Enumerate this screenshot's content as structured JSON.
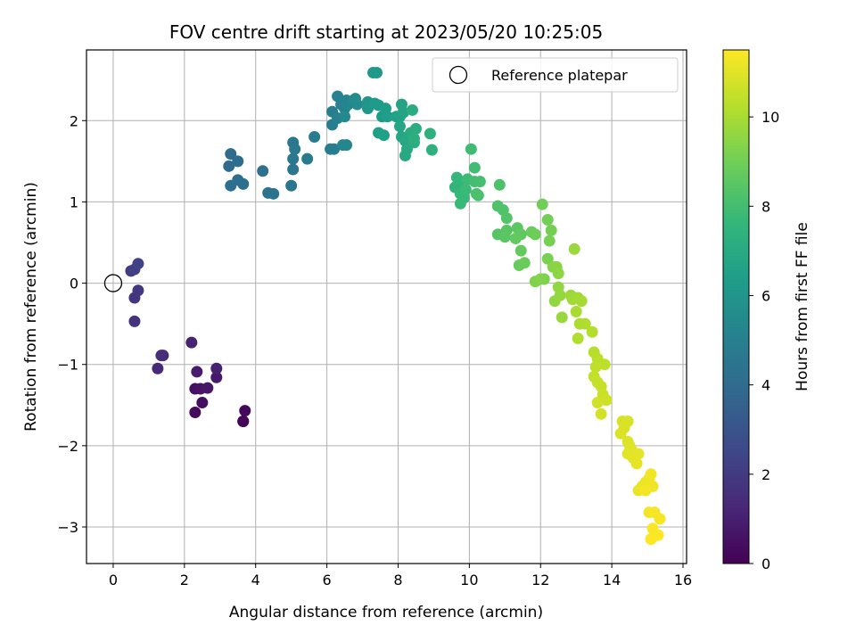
{
  "chart_data": {
    "type": "scatter",
    "title": "FOV centre drift starting at 2023/05/20 10:25:05",
    "xlabel": "Angular distance from reference (arcmin)",
    "ylabel": "Rotation from reference (arcmin)",
    "xlim": [
      -0.75,
      16.1
    ],
    "ylim": [
      -3.45,
      2.87
    ],
    "xticks": [
      0,
      2,
      4,
      6,
      8,
      10,
      12,
      14,
      16
    ],
    "yticks": [
      -3,
      -2,
      -1,
      0,
      1,
      2
    ],
    "grid": true,
    "legend": {
      "position": "upper-right",
      "entries": [
        "Reference platepar"
      ]
    },
    "reference_point": {
      "x": 0,
      "y": 0,
      "marker": "open-circle"
    },
    "colorbar": {
      "label": "Hours from first FF file",
      "colormap": "viridis",
      "min": 0,
      "max": 11.5,
      "ticks": [
        0,
        2,
        4,
        6,
        8,
        10
      ]
    },
    "colormap_stops": [
      "#440154",
      "#482878",
      "#3e4989",
      "#31688e",
      "#26828e",
      "#1f9e89",
      "#35b779",
      "#6ece58",
      "#b5de2b",
      "#fde725"
    ],
    "points": [
      [
        3.65,
        -1.7,
        0.0
      ],
      [
        3.65,
        -1.7,
        0.1
      ],
      [
        3.7,
        -1.57,
        0.2
      ],
      [
        2.3,
        -1.59,
        0.3
      ],
      [
        2.5,
        -1.47,
        0.4
      ],
      [
        2.3,
        -1.3,
        0.5
      ],
      [
        2.45,
        -1.3,
        0.6
      ],
      [
        2.65,
        -1.29,
        0.7
      ],
      [
        2.9,
        -1.16,
        0.8
      ],
      [
        2.35,
        -1.09,
        0.9
      ],
      [
        2.9,
        -1.05,
        1.0
      ],
      [
        2.2,
        -0.73,
        1.1
      ],
      [
        1.25,
        -1.05,
        1.3
      ],
      [
        1.4,
        -0.89,
        1.4
      ],
      [
        1.35,
        -0.89,
        1.5
      ],
      [
        0.6,
        -0.47,
        1.7
      ],
      [
        0.6,
        -0.18,
        1.8
      ],
      [
        0.7,
        -0.09,
        1.9
      ],
      [
        0.5,
        0.15,
        2.1
      ],
      [
        0.6,
        0.17,
        2.2
      ],
      [
        0.7,
        0.24,
        2.3
      ],
      [
        3.25,
        1.44,
        4.0
      ],
      [
        3.3,
        1.59,
        4.05
      ],
      [
        3.5,
        1.5,
        4.1
      ],
      [
        3.3,
        1.2,
        4.15
      ],
      [
        3.5,
        1.27,
        4.2
      ],
      [
        3.65,
        1.22,
        4.25
      ],
      [
        4.2,
        1.38,
        4.3
      ],
      [
        4.35,
        1.11,
        4.35
      ],
      [
        4.5,
        1.1,
        4.4
      ],
      [
        5.0,
        1.2,
        4.45
      ],
      [
        5.05,
        1.4,
        4.5
      ],
      [
        5.05,
        1.53,
        4.55
      ],
      [
        5.05,
        1.73,
        4.6
      ],
      [
        5.1,
        1.65,
        4.65
      ],
      [
        5.45,
        1.53,
        4.7
      ],
      [
        5.65,
        1.8,
        4.75
      ],
      [
        6.1,
        1.65,
        4.8
      ],
      [
        6.2,
        1.65,
        4.85
      ],
      [
        6.15,
        1.95,
        4.9
      ],
      [
        6.15,
        2.11,
        4.95
      ],
      [
        6.3,
        2.03,
        5.0
      ],
      [
        6.3,
        2.3,
        5.05
      ],
      [
        6.4,
        2.2,
        5.1
      ],
      [
        6.5,
        2.15,
        5.15
      ],
      [
        6.55,
        2.25,
        5.2
      ],
      [
        6.6,
        2.2,
        5.25
      ],
      [
        6.55,
        1.7,
        5.3
      ],
      [
        6.45,
        1.7,
        5.35
      ],
      [
        6.5,
        2.05,
        5.4
      ],
      [
        6.75,
        2.25,
        5.45
      ],
      [
        6.8,
        2.27,
        5.5
      ],
      [
        6.85,
        2.2,
        5.55
      ],
      [
        7.15,
        2.23,
        6.0
      ],
      [
        7.15,
        2.15,
        6.05
      ],
      [
        7.3,
        2.59,
        6.1
      ],
      [
        7.4,
        2.59,
        6.15
      ],
      [
        7.35,
        2.21,
        6.2
      ],
      [
        7.45,
        2.19,
        6.25
      ],
      [
        7.55,
        2.05,
        6.3
      ],
      [
        7.65,
        2.15,
        6.35
      ],
      [
        7.7,
        2.05,
        6.4
      ],
      [
        7.45,
        1.85,
        6.45
      ],
      [
        7.6,
        1.82,
        6.5
      ],
      [
        7.95,
        2.05,
        6.55
      ],
      [
        8.1,
        2.2,
        6.6
      ],
      [
        8.05,
        2.05,
        6.65
      ],
      [
        8.15,
        2.1,
        6.7
      ],
      [
        8.05,
        1.93,
        6.75
      ],
      [
        8.1,
        1.8,
        6.8
      ],
      [
        8.2,
        1.75,
        6.85
      ],
      [
        8.25,
        1.65,
        6.9
      ],
      [
        8.2,
        1.57,
        6.95
      ],
      [
        8.35,
        1.85,
        7.0
      ],
      [
        8.45,
        1.73,
        7.05
      ],
      [
        8.4,
        2.13,
        7.1
      ],
      [
        8.5,
        1.9,
        7.15
      ],
      [
        8.45,
        1.78,
        7.2
      ],
      [
        8.9,
        1.84,
        7.25
      ],
      [
        8.95,
        1.64,
        7.3
      ],
      [
        9.6,
        1.18,
        7.5
      ],
      [
        9.7,
        1.2,
        7.55
      ],
      [
        9.65,
        1.3,
        7.6
      ],
      [
        9.75,
        1.1,
        7.65
      ],
      [
        9.85,
        1.05,
        7.7
      ],
      [
        9.75,
        0.98,
        7.75
      ],
      [
        9.9,
        1.15,
        7.8
      ],
      [
        9.95,
        1.28,
        7.85
      ],
      [
        10.05,
        1.65,
        7.9
      ],
      [
        10.15,
        1.42,
        7.95
      ],
      [
        10.15,
        1.25,
        8.0
      ],
      [
        10.3,
        1.25,
        8.05
      ],
      [
        10.25,
        1.08,
        8.1
      ],
      [
        10.2,
        1.1,
        8.15
      ],
      [
        10.85,
        1.21,
        8.2
      ],
      [
        10.8,
        0.95,
        8.25
      ],
      [
        10.95,
        0.9,
        8.3
      ],
      [
        11.05,
        0.8,
        8.35
      ],
      [
        10.8,
        0.6,
        8.4
      ],
      [
        11.05,
        0.65,
        8.45
      ],
      [
        11.0,
        0.57,
        8.5
      ],
      [
        11.35,
        0.68,
        8.55
      ],
      [
        11.45,
        0.6,
        8.6
      ],
      [
        11.3,
        0.55,
        8.65
      ],
      [
        11.45,
        0.4,
        8.7
      ],
      [
        11.4,
        0.22,
        8.75
      ],
      [
        11.55,
        0.25,
        8.8
      ],
      [
        11.75,
        0.63,
        8.85
      ],
      [
        11.85,
        0.6,
        8.9
      ],
      [
        12.05,
        0.97,
        8.95
      ],
      [
        12.2,
        0.78,
        9.0
      ],
      [
        12.3,
        0.65,
        9.05
      ],
      [
        12.25,
        0.52,
        9.1
      ],
      [
        12.2,
        0.3,
        9.15
      ],
      [
        12.1,
        0.05,
        9.2
      ],
      [
        11.85,
        0.02,
        9.25
      ],
      [
        12.0,
        0.05,
        9.3
      ],
      [
        12.35,
        0.2,
        9.4
      ],
      [
        12.45,
        0.2,
        9.45
      ],
      [
        12.5,
        0.12,
        9.5
      ],
      [
        12.4,
        -0.22,
        9.55
      ],
      [
        12.5,
        -0.05,
        9.6
      ],
      [
        12.55,
        -0.15,
        9.65
      ],
      [
        12.6,
        -0.42,
        9.7
      ],
      [
        12.95,
        0.42,
        9.75
      ],
      [
        12.85,
        -0.15,
        9.8
      ],
      [
        12.9,
        -0.2,
        9.85
      ],
      [
        13.05,
        -0.18,
        9.9
      ],
      [
        13.15,
        -0.22,
        9.95
      ],
      [
        13.0,
        -0.35,
        10.0
      ],
      [
        13.1,
        -0.5,
        10.05
      ],
      [
        13.25,
        -0.5,
        10.1
      ],
      [
        13.05,
        -0.68,
        10.15
      ],
      [
        13.45,
        -0.6,
        10.2
      ],
      [
        13.5,
        -0.85,
        10.25
      ],
      [
        13.6,
        -0.93,
        10.3
      ],
      [
        13.8,
        -1.0,
        10.35
      ],
      [
        13.55,
        -1.03,
        10.4
      ],
      [
        13.5,
        -1.15,
        10.45
      ],
      [
        13.6,
        -1.22,
        10.5
      ],
      [
        13.7,
        -1.27,
        10.55
      ],
      [
        13.75,
        -1.37,
        10.6
      ],
      [
        13.85,
        -1.44,
        10.65
      ],
      [
        13.6,
        -1.47,
        10.7
      ],
      [
        13.7,
        -1.61,
        10.75
      ],
      [
        14.3,
        -1.7,
        10.8
      ],
      [
        14.45,
        -1.7,
        10.83
      ],
      [
        14.35,
        -1.78,
        10.86
      ],
      [
        14.25,
        -1.85,
        10.89
      ],
      [
        14.45,
        -1.95,
        10.92
      ],
      [
        14.5,
        -2.0,
        10.95
      ],
      [
        14.55,
        -2.05,
        10.98
      ],
      [
        14.45,
        -2.1,
        11.01
      ],
      [
        14.6,
        -2.15,
        11.04
      ],
      [
        14.75,
        -2.1,
        11.07
      ],
      [
        14.7,
        -2.22,
        11.1
      ],
      [
        14.75,
        -2.55,
        11.13
      ],
      [
        14.85,
        -2.5,
        11.16
      ],
      [
        14.95,
        -2.45,
        11.19
      ],
      [
        15.05,
        -2.4,
        11.22
      ],
      [
        15.15,
        -2.5,
        11.25
      ],
      [
        15.1,
        -2.35,
        11.28
      ],
      [
        14.95,
        -2.55,
        11.31
      ],
      [
        15.05,
        -2.82,
        11.34
      ],
      [
        15.2,
        -2.82,
        11.37
      ],
      [
        15.35,
        -2.9,
        11.4
      ],
      [
        15.15,
        -3.02,
        11.43
      ],
      [
        15.3,
        -3.1,
        11.46
      ],
      [
        15.1,
        -3.15,
        11.5
      ]
    ]
  }
}
